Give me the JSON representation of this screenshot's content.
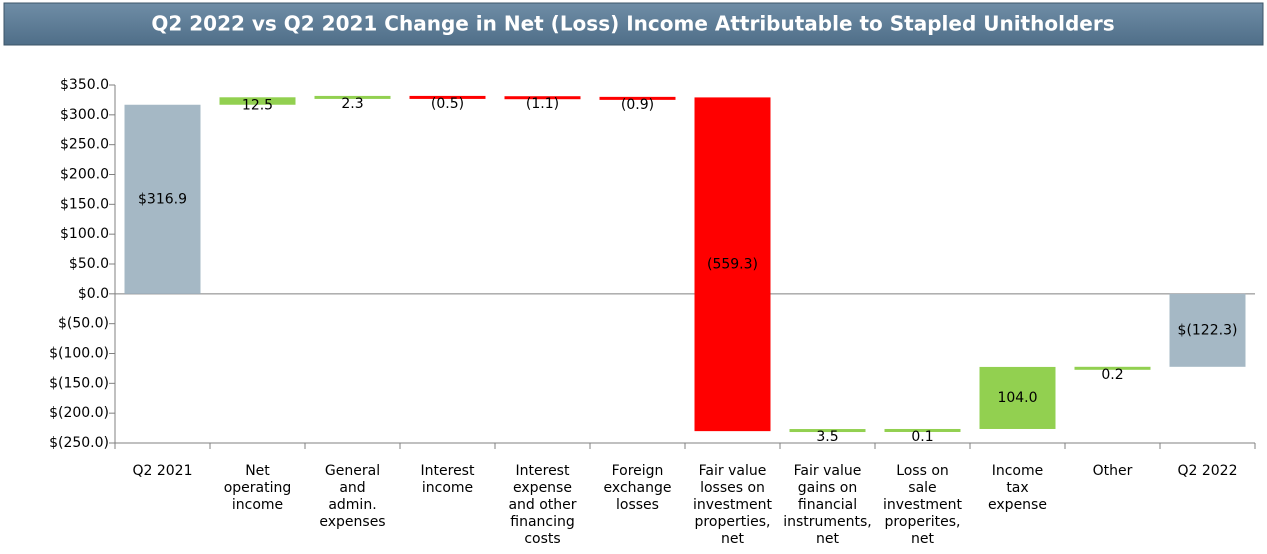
{
  "chart_data": {
    "type": "waterfall",
    "title": "Q2 2022 vs Q2 2021 Change in Net (Loss) Income Attributable to Stapled Unitholders",
    "categories": [
      "Q2 2021",
      "Net\noperating\nincome",
      "General\nand\nadmin.\nexpenses",
      "Interest\nincome",
      "Interest\nexpense\nand other\nfinancing\ncosts",
      "Foreign\nexchange\nlosses",
      "Fair value\nlosses on\ninvestment\nproperties,\nnet",
      "Fair value\ngains on\nfinancial\ninstruments,\nnet",
      "Loss on\nsale\ninvestment\nproperites,\nnet",
      "Income\ntax\nexpense",
      "Other",
      "Q2 2022"
    ],
    "measure": [
      "total",
      "relative",
      "relative",
      "relative",
      "relative",
      "relative",
      "relative",
      "relative",
      "relative",
      "relative",
      "relative",
      "total"
    ],
    "values": [
      316.9,
      12.5,
      2.3,
      -0.5,
      -1.1,
      -0.9,
      -559.3,
      3.5,
      0.1,
      104.0,
      0.2,
      -122.3
    ],
    "value_labels": [
      "$316.9",
      "12.5",
      "2.3",
      "(0.5)",
      "(1.1)",
      "(0.9)",
      "(559.3)",
      "3.5",
      "0.1",
      "104.0",
      "0.2",
      "$(122.3)"
    ],
    "colors": {
      "total": "#a5b8c5",
      "increase": "#92d050",
      "decrease": "#ff0000"
    },
    "ylim": [
      -250,
      350
    ],
    "yticks": [
      {
        "value": -250,
        "label": "$(250.0)"
      },
      {
        "value": -200,
        "label": "$(200.0)"
      },
      {
        "value": -150,
        "label": "$(150.0)"
      },
      {
        "value": -100,
        "label": "$(100.0)"
      },
      {
        "value": -50,
        "label": "$(50.0)"
      },
      {
        "value": 0,
        "label": "$0.0"
      },
      {
        "value": 50,
        "label": "$50.0"
      },
      {
        "value": 100,
        "label": "$100.0"
      },
      {
        "value": 150,
        "label": "$150.0"
      },
      {
        "value": 200,
        "label": "$200.0"
      },
      {
        "value": 250,
        "label": "$250.0"
      },
      {
        "value": 300,
        "label": "$300.0"
      },
      {
        "value": 350,
        "label": "$350.0"
      }
    ]
  }
}
